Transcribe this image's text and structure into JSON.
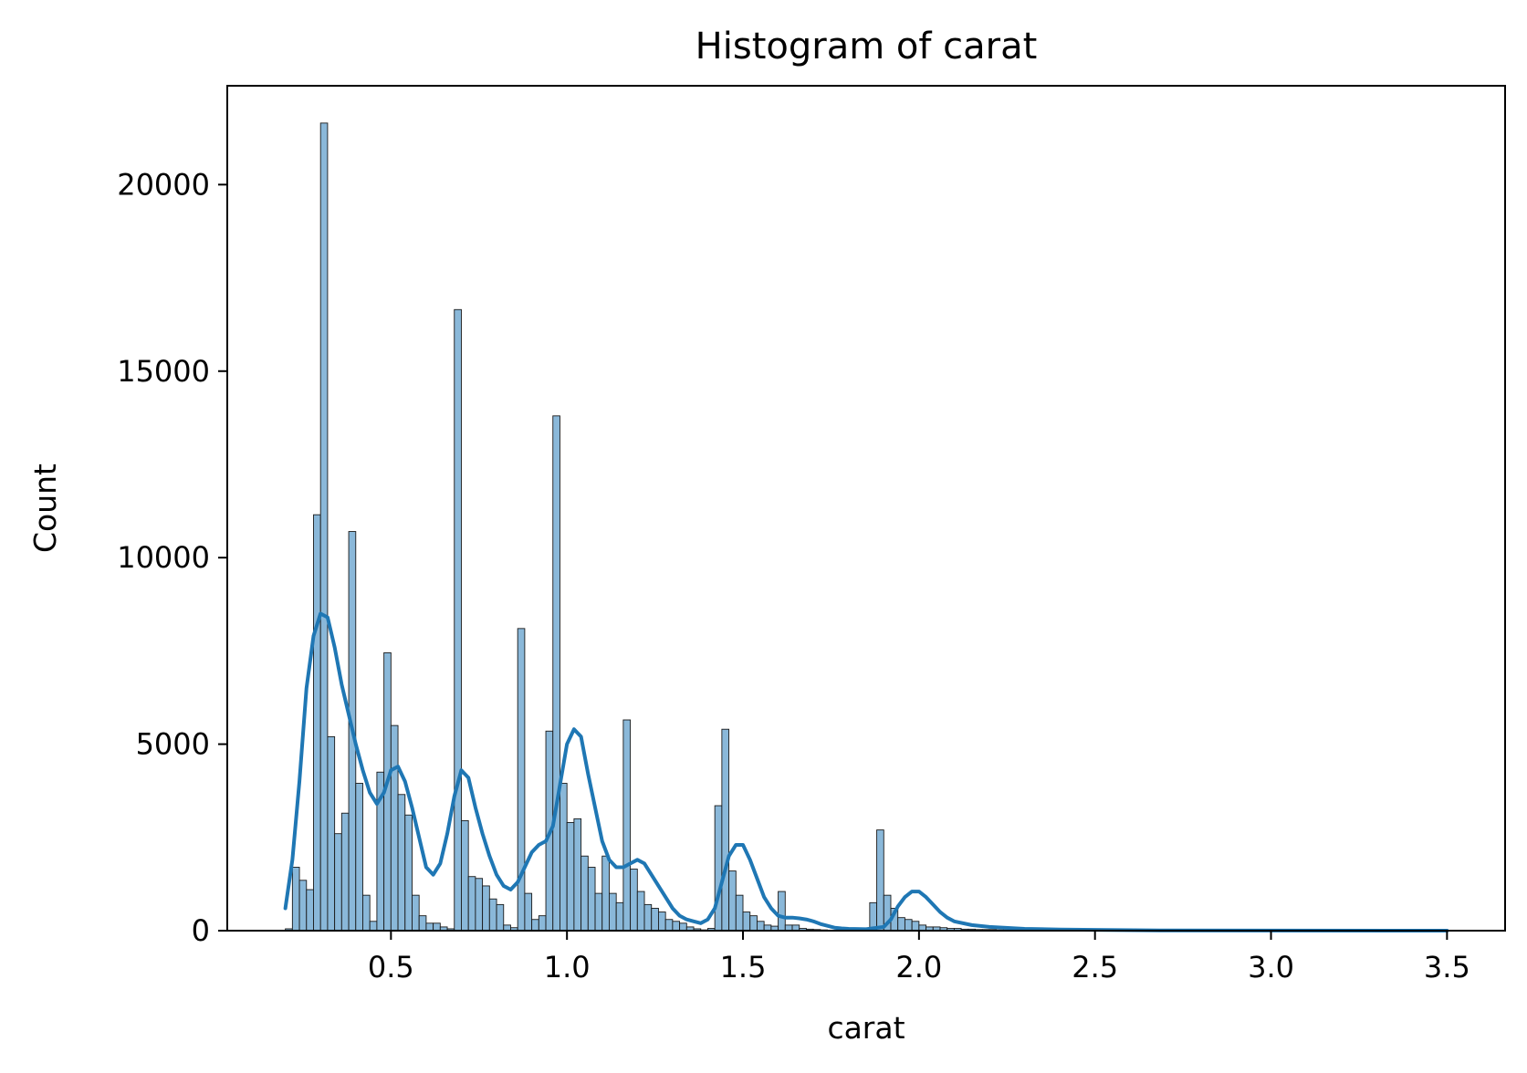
{
  "chart_data": {
    "type": "bar",
    "title": "Histogram of carat",
    "xlabel": "carat",
    "ylabel": "Count",
    "xlim": [
      0.035,
      3.665
    ],
    "ylim": [
      0,
      22650
    ],
    "xticks": [
      0.5,
      1.0,
      1.5,
      2.0,
      2.5,
      3.0,
      3.5
    ],
    "xtick_labels": [
      "0.5",
      "1.0",
      "1.5",
      "2.0",
      "2.5",
      "3.0",
      "3.5"
    ],
    "yticks": [
      0,
      5000,
      10000,
      15000,
      20000
    ],
    "ytick_labels": [
      "0",
      "5000",
      "10000",
      "15000",
      "20000"
    ],
    "grid": false,
    "bin_width": 0.02,
    "bins_x_start": [
      0.2,
      0.22,
      0.24,
      0.26,
      0.28,
      0.3,
      0.32,
      0.34,
      0.36,
      0.38,
      0.4,
      0.42,
      0.44,
      0.46,
      0.48,
      0.5,
      0.52,
      0.54,
      0.56,
      0.58,
      0.6,
      0.62,
      0.64,
      0.66,
      0.68,
      0.7,
      0.72,
      0.74,
      0.76,
      0.78,
      0.8,
      0.82,
      0.84,
      0.86,
      0.88,
      0.9,
      0.92,
      0.94,
      0.96,
      0.98,
      1.0,
      1.02,
      1.04,
      1.06,
      1.08,
      1.1,
      1.12,
      1.14,
      1.16,
      1.18,
      1.2,
      1.22,
      1.24,
      1.26,
      1.28,
      1.3,
      1.32,
      1.34,
      1.36,
      1.38,
      1.4,
      1.42,
      1.44,
      1.46,
      1.48,
      1.5,
      1.52,
      1.54,
      1.56,
      1.58,
      1.6,
      1.62,
      1.64,
      1.66,
      1.68,
      1.7,
      1.72,
      1.74,
      1.76,
      1.78,
      1.8,
      1.82,
      1.84,
      1.86,
      1.88,
      1.9,
      1.92,
      1.94,
      1.96,
      1.98,
      2.0,
      2.02,
      2.04,
      2.06,
      2.08,
      2.1,
      2.12,
      2.14,
      2.16,
      2.18,
      2.2,
      2.22,
      2.24,
      2.26,
      2.28,
      2.3,
      2.32,
      2.34,
      2.36,
      2.38,
      2.4,
      2.42,
      2.44,
      2.46,
      2.48,
      2.5
    ],
    "counts": [
      50,
      1700,
      1350,
      1100,
      11150,
      21650,
      5200,
      2600,
      3150,
      10700,
      3950,
      950,
      250,
      4250,
      7450,
      5500,
      3650,
      3100,
      950,
      400,
      200,
      200,
      100,
      50,
      16650,
      2950,
      1450,
      1400,
      1200,
      850,
      700,
      150,
      80,
      8100,
      1000,
      300,
      400,
      5350,
      13800,
      3950,
      2900,
      3000,
      2000,
      1700,
      1000,
      2000,
      1000,
      750,
      5650,
      1650,
      1050,
      700,
      600,
      500,
      300,
      250,
      200,
      100,
      50,
      20,
      60,
      3350,
      5400,
      1600,
      950,
      500,
      400,
      250,
      150,
      120,
      1050,
      150,
      150,
      60,
      40,
      30,
      20,
      10,
      10,
      10,
      10,
      5,
      5,
      750,
      2700,
      950,
      600,
      350,
      300,
      250,
      150,
      100,
      100,
      80,
      60,
      60,
      40,
      40,
      30,
      30,
      30,
      20,
      20,
      20,
      15,
      10,
      10,
      10,
      10,
      10,
      10,
      10,
      10,
      10,
      10,
      10
    ],
    "kde_x": [
      0.2,
      0.22,
      0.24,
      0.26,
      0.28,
      0.3,
      0.32,
      0.34,
      0.36,
      0.38,
      0.4,
      0.42,
      0.44,
      0.46,
      0.48,
      0.5,
      0.52,
      0.54,
      0.56,
      0.58,
      0.6,
      0.62,
      0.64,
      0.66,
      0.68,
      0.7,
      0.72,
      0.74,
      0.76,
      0.78,
      0.8,
      0.82,
      0.84,
      0.86,
      0.88,
      0.9,
      0.92,
      0.94,
      0.96,
      0.98,
      1.0,
      1.02,
      1.04,
      1.06,
      1.08,
      1.1,
      1.12,
      1.14,
      1.16,
      1.18,
      1.2,
      1.22,
      1.24,
      1.26,
      1.28,
      1.3,
      1.32,
      1.34,
      1.36,
      1.38,
      1.4,
      1.42,
      1.44,
      1.46,
      1.48,
      1.5,
      1.52,
      1.54,
      1.56,
      1.58,
      1.6,
      1.62,
      1.64,
      1.66,
      1.68,
      1.7,
      1.72,
      1.74,
      1.76,
      1.78,
      1.8,
      1.85,
      1.9,
      1.92,
      1.94,
      1.96,
      1.98,
      2.0,
      2.02,
      2.04,
      2.06,
      2.08,
      2.1,
      2.15,
      2.2,
      2.3,
      2.4,
      2.5,
      2.7,
      3.0,
      3.5
    ],
    "kde_y": [
      600,
      1900,
      4000,
      6500,
      7900,
      8500,
      8400,
      7600,
      6600,
      5800,
      5000,
      4300,
      3700,
      3400,
      3700,
      4300,
      4400,
      4000,
      3300,
      2500,
      1700,
      1500,
      1800,
      2600,
      3600,
      4300,
      4100,
      3300,
      2600,
      2000,
      1500,
      1200,
      1100,
      1300,
      1700,
      2100,
      2300,
      2400,
      2800,
      3900,
      5000,
      5400,
      5200,
      4200,
      3300,
      2400,
      1900,
      1700,
      1700,
      1800,
      1900,
      1800,
      1500,
      1200,
      900,
      600,
      400,
      300,
      250,
      200,
      300,
      600,
      1300,
      2000,
      2300,
      2300,
      1900,
      1400,
      900,
      600,
      400,
      350,
      350,
      330,
      300,
      250,
      180,
      130,
      80,
      60,
      50,
      40,
      100,
      300,
      650,
      900,
      1050,
      1050,
      900,
      700,
      500,
      350,
      250,
      150,
      100,
      50,
      30,
      20,
      5,
      2,
      0
    ]
  }
}
